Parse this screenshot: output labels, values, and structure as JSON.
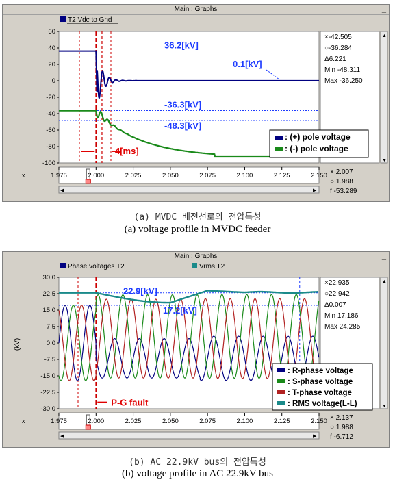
{
  "panel_a": {
    "window_title": "Main : Graphs",
    "close_glyph": "_",
    "legend_tab": "T2 Vdc to Gnd",
    "readout": [
      "×-42.505",
      "○-36.284",
      "Δ6.221",
      "Min -48.311",
      "Max -36.250"
    ],
    "xreadout": [
      "× 2.007",
      "○ 1.988",
      "f  -53.289"
    ],
    "xaxis_label": "x",
    "legend": [
      "(+) pole voltage",
      "(-) pole voltage"
    ],
    "legend_colors": [
      "#000080",
      "#1a8a1a"
    ],
    "annotations": [
      "36.2[kV]",
      "0.1[kV]",
      "-36.3[kV]",
      "-48.3[kV]",
      "4[ms]"
    ],
    "caption_kr": "(a) MVDC 배전선로의 전압특성",
    "caption_en": "(a) voltage profile in MVDC feeder"
  },
  "panel_b": {
    "window_title": "Main : Graphs",
    "close_glyph": "_",
    "legend_tabs": [
      "Phase voltages T2",
      "Vrms T2"
    ],
    "ylabel": "(kV)",
    "readout": [
      "×22.935",
      "○22.942",
      "Δ0.007",
      "Min 17.186",
      "Max 24.285"
    ],
    "xreadout": [
      "× 2.137",
      "○ 1.988",
      "f  -6.712"
    ],
    "xaxis_label": "x",
    "legend": [
      "R-phase voltage",
      "S-phase voltage",
      "T-phase voltage",
      "RMS voltage(L-L)"
    ],
    "legend_colors": [
      "#000080",
      "#1a8a1a",
      "#b22222",
      "#1a8a8a"
    ],
    "annotations": [
      "22.9[kV]",
      "17.2[kV]",
      "P-G fault"
    ],
    "caption_kr": "(b) AC 22.9kV bus의 전압특성",
    "caption_en": "(b) voltage profile in AC 22.9kV bus"
  },
  "chart_data": [
    {
      "type": "line",
      "xlim": [
        1.975,
        2.15
      ],
      "ylim": [
        -100,
        60
      ],
      "xticks": [
        "1.975",
        "2.000",
        "2.025",
        "2.050",
        "2.075",
        "2.100",
        "2.125",
        "2.150"
      ],
      "yticks": [
        "60",
        "40",
        "20",
        "0",
        "-20",
        "-40",
        "-60",
        "-80",
        "-100"
      ],
      "grid": false,
      "legend_position": "bottom-right",
      "series": [
        {
          "name": "(+) pole voltage",
          "x": [
            1.975,
            2.0,
            2.001,
            2.003,
            2.005,
            2.008,
            2.012,
            2.02,
            2.03,
            2.15
          ],
          "y": [
            36.2,
            36.2,
            20,
            -15,
            10,
            -8,
            6,
            2,
            0.1,
            0.1
          ]
        },
        {
          "name": "(-) pole voltage",
          "x": [
            1.975,
            2.0,
            2.002,
            2.006,
            2.01,
            2.03,
            2.05,
            2.07,
            2.1,
            2.15
          ],
          "y": [
            -36.3,
            -36.3,
            -48.3,
            -42,
            -50,
            -62,
            -80,
            -92,
            -93,
            -92
          ]
        }
      ]
    },
    {
      "type": "line",
      "xlim": [
        1.975,
        2.15
      ],
      "ylim": [
        -30,
        30
      ],
      "xticks": [
        "1.975",
        "2.000",
        "2.025",
        "2.050",
        "2.075",
        "2.100",
        "2.125",
        "2.150"
      ],
      "yticks": [
        "30.0",
        "22.5",
        "15.0",
        "7.5",
        "0.0",
        "-7.5",
        "-15.0",
        "-22.5",
        "-30.0"
      ],
      "grid": false,
      "legend_position": "bottom-right",
      "phase_amplitude_pre": 17.2,
      "phase_frequency": 60,
      "series": [
        {
          "name": "R-phase voltage",
          "phase_deg": 0
        },
        {
          "name": "S-phase voltage",
          "phase_deg": -120
        },
        {
          "name": "T-phase voltage",
          "phase_deg": 120
        },
        {
          "name": "RMS voltage(L-L)",
          "x": [
            1.975,
            2.0,
            2.02,
            2.04,
            2.06,
            2.075,
            2.09,
            2.15
          ],
          "y": [
            22.9,
            22.9,
            21.5,
            19.5,
            18.5,
            22.5,
            23.5,
            23.0
          ]
        }
      ]
    }
  ]
}
